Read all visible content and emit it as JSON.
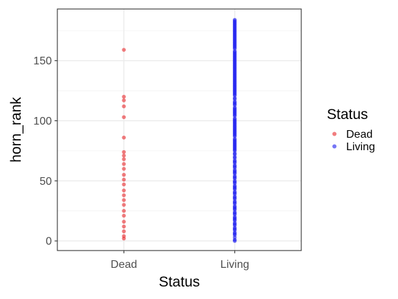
{
  "chart_data": {
    "type": "scatter",
    "xlabel": "Status",
    "ylabel": "horn_rank",
    "categories": [
      "Dead",
      "Living"
    ],
    "ylim": [
      -8,
      193
    ],
    "yticks": [
      0,
      50,
      100,
      150
    ],
    "grid": true,
    "legend": {
      "title": "Status",
      "position": "right"
    },
    "series": [
      {
        "name": "Dead",
        "color": "#e8262a",
        "values": [
          2,
          4,
          8,
          12,
          16,
          21,
          25,
          30,
          34,
          38,
          42,
          47,
          51,
          55,
          60,
          64,
          68,
          71,
          74,
          86,
          103,
          112,
          117,
          120,
          159
        ]
      },
      {
        "name": "Living",
        "color": "#1b1bf0",
        "values": [
          0,
          1,
          3,
          5,
          6,
          7,
          9,
          10,
          11,
          13,
          14,
          15,
          17,
          18,
          19,
          20,
          22,
          23,
          24,
          26,
          27,
          28,
          29,
          31,
          32,
          33,
          35,
          36,
          37,
          39,
          40,
          41,
          43,
          44,
          45,
          46,
          48,
          49,
          50,
          52,
          53,
          54,
          56,
          57,
          58,
          59,
          61,
          62,
          63,
          65,
          66,
          67,
          69,
          70,
          72,
          73,
          75,
          76,
          77,
          78,
          79,
          80,
          81,
          82,
          83,
          84,
          85,
          87,
          88,
          89,
          90,
          91,
          92,
          93,
          94,
          95,
          96,
          97,
          98,
          99,
          100,
          101,
          102,
          104,
          105,
          106,
          107,
          108,
          109,
          110,
          111,
          113,
          114,
          115,
          116,
          118,
          119,
          121,
          122,
          123,
          124,
          125,
          126,
          127,
          128,
          129,
          130,
          131,
          132,
          133,
          134,
          135,
          136,
          137,
          138,
          139,
          140,
          141,
          142,
          143,
          144,
          145,
          146,
          147,
          148,
          149,
          150,
          151,
          152,
          153,
          154,
          155,
          156,
          157,
          158,
          160,
          161,
          162,
          163,
          164,
          165,
          166,
          167,
          168,
          169,
          170,
          171,
          172,
          173,
          174,
          175,
          176,
          177,
          178,
          179,
          180,
          181,
          182,
          183,
          184
        ]
      }
    ]
  }
}
